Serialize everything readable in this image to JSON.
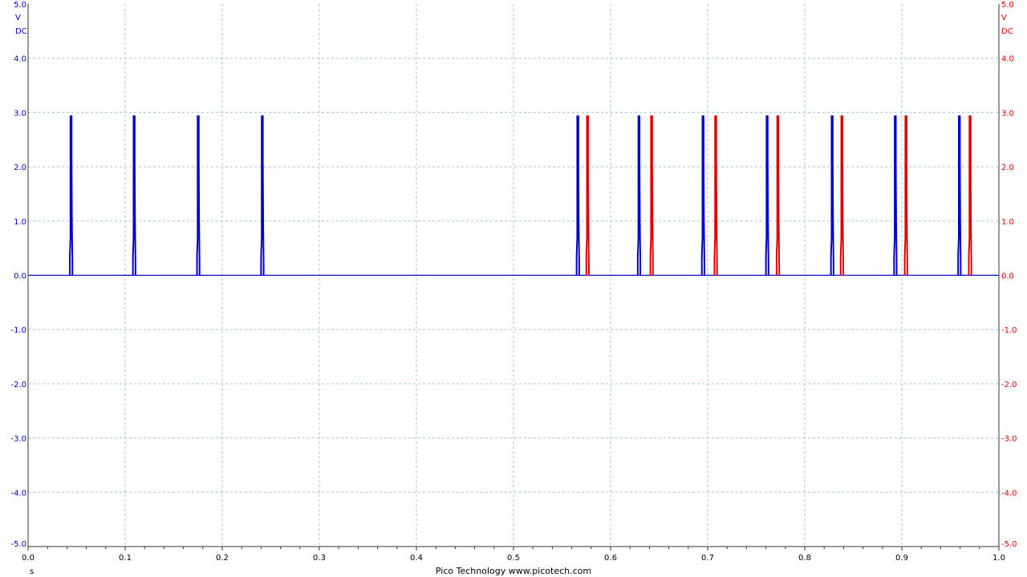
{
  "chart_data": {
    "type": "line",
    "footer": "Pico Technology  www.picotech.com",
    "xlabel": "s",
    "x_ticks": [
      "0.0",
      "0.1",
      "0.2",
      "0.3",
      "0.4",
      "0.5",
      "0.6",
      "0.7",
      "0.8",
      "0.9",
      "1.0"
    ],
    "xlim": [
      0,
      1.0
    ],
    "grid": true,
    "y_left": {
      "unit": "V",
      "coupling": "DC",
      "color": "#0000cc",
      "ylim": [
        -5.0,
        5.0
      ],
      "ticks": [
        "5.0",
        "4.0",
        "3.0",
        "2.0",
        "1.0",
        "0.0",
        "-1.0",
        "-2.0",
        "-3.0",
        "-4.0",
        "-5.0"
      ]
    },
    "y_right": {
      "unit": "V",
      "coupling": "DC",
      "color": "#e00000",
      "ylim": [
        -5.0,
        5.0
      ],
      "ticks": [
        "5.0",
        "4.0",
        "3.0",
        "2.0",
        "1.0",
        "0.0",
        "-1.0",
        "-2.0",
        "-3.0",
        "-4.0",
        "-5.0"
      ]
    },
    "series": [
      {
        "color": "#0000cc",
        "baseline": 0.0,
        "high_level": 2.93,
        "burst_starts_s": [
          0.043,
          0.108,
          0.174,
          0.24,
          0.565,
          0.628,
          0.694,
          0.76,
          0.827,
          0.892,
          0.958
        ]
      },
      {
        "color": "#e00000",
        "baseline": 0.0,
        "high_level": 2.93,
        "burst_starts_s": [
          0.575,
          0.641,
          0.707,
          0.771,
          0.837,
          0.903,
          0.969
        ]
      }
    ]
  }
}
